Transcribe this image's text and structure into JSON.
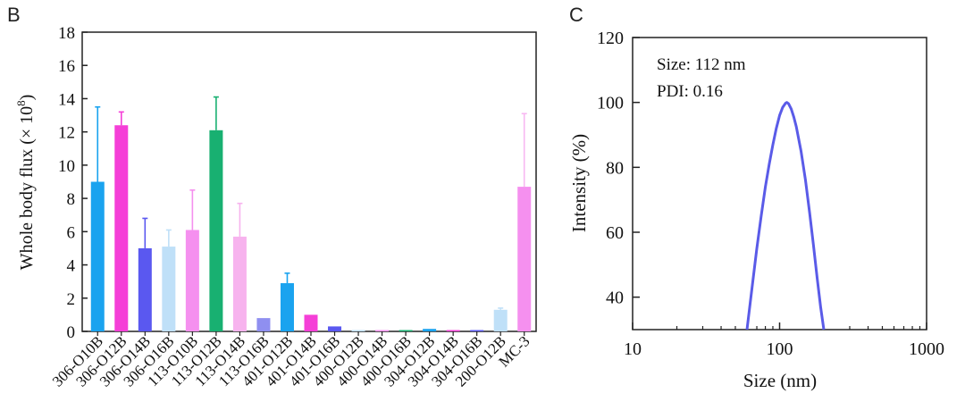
{
  "panels": {
    "b": {
      "letter": "B"
    },
    "c": {
      "letter": "C"
    }
  },
  "chart_data": [
    {
      "panel": "B",
      "type": "bar",
      "title": "",
      "xlabel": "",
      "ylabel": "Whole body flux (× 10",
      "ylabel_superscript": "8",
      "ylabel_suffix": ")",
      "ylim": [
        0,
        18
      ],
      "yticks": [
        0,
        2,
        4,
        6,
        8,
        10,
        12,
        14,
        16,
        18
      ],
      "categories": [
        "306-O10B",
        "306-O12B",
        "306-O14B",
        "306-O16B",
        "113-O10B",
        "113-O12B",
        "113-O14B",
        "113-O16B",
        "401-O12B",
        "401-O14B",
        "401-O16B",
        "400-O12B",
        "400-O14B",
        "400-O16B",
        "304-O12B",
        "304-O14B",
        "304-O16B",
        "200-O12B",
        "MC-3"
      ],
      "values": [
        9.0,
        12.4,
        5.0,
        5.1,
        6.1,
        12.1,
        5.7,
        0.8,
        2.9,
        1.0,
        0.3,
        0.05,
        0.05,
        0.05,
        0.15,
        0.05,
        0.05,
        1.3,
        8.7
      ],
      "errors": [
        4.5,
        0.8,
        1.8,
        1.0,
        2.4,
        2.0,
        2.0,
        0.0,
        0.6,
        0.0,
        0.0,
        0.0,
        0.0,
        0.0,
        0.0,
        0.0,
        0.0,
        0.1,
        4.4
      ],
      "colors": [
        "#1aa3ef",
        "#f53fd7",
        "#5a58f0",
        "#bfe0f8",
        "#f590ef",
        "#18b071",
        "#f7b3ee",
        "#8f8ff0",
        "#1aa3ef",
        "#f53fd7",
        "#5a58f0",
        "#bfe0f8",
        "#f590ef",
        "#18b071",
        "#1aa3ef",
        "#f53fd7",
        "#5a58f0",
        "#bfe0f8",
        "#f590ef"
      ],
      "error_colors": [
        "#1aa3ef",
        "#f53fd7",
        "#5a58f0",
        "#bfe0f8",
        "#f590ef",
        "#18b071",
        "#f7b3ee",
        "#8f8ff0",
        "#1aa3ef",
        "#f53fd7",
        "#5a58f0",
        "#bfe0f8",
        "#f590ef",
        "#18b071",
        "#1aa3ef",
        "#f53fd7",
        "#5a58f0",
        "#bfe0f8",
        "#f8b8f2"
      ]
    },
    {
      "panel": "C",
      "type": "line",
      "title": "",
      "xlabel": "Size (nm)",
      "ylabel": "Intensity (%)",
      "xscale": "log",
      "xlim": [
        10,
        1000
      ],
      "ylim": [
        30,
        120
      ],
      "xticks": [
        10,
        100,
        1000
      ],
      "yticks": [
        40,
        60,
        80,
        100,
        120
      ],
      "annotations": [
        "Size: 112 nm",
        "PDI: 0.16"
      ],
      "series": [
        {
          "name": "Intensity",
          "color": "#5a5be8",
          "x": [
            60,
            65,
            70,
            75,
            80,
            85,
            90,
            95,
            100,
            105,
            110,
            112,
            115,
            120,
            125,
            130,
            140,
            150,
            160,
            170,
            180,
            190,
            200
          ],
          "y": [
            30,
            43,
            55,
            65,
            74,
            81,
            87,
            92,
            96,
            98.5,
            99.8,
            100,
            99.6,
            98,
            95.5,
            92.5,
            85,
            76,
            66,
            56,
            46,
            37,
            30
          ]
        }
      ]
    }
  ]
}
